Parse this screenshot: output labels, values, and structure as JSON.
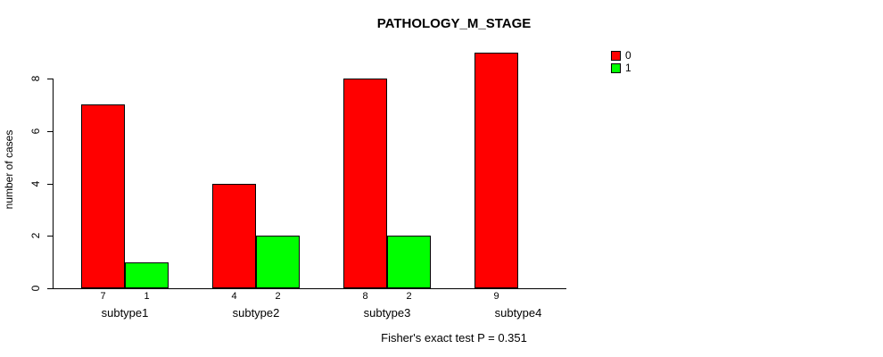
{
  "chart_data": {
    "type": "bar",
    "title": "PATHOLOGY_M_STAGE",
    "categories": [
      "subtype1",
      "subtype2",
      "subtype3",
      "subtype4"
    ],
    "series": [
      {
        "name": "0",
        "color": "#FF0000",
        "values": [
          7,
          4,
          8,
          9
        ]
      },
      {
        "name": "1",
        "color": "#00FF00",
        "values": [
          1,
          2,
          2,
          0
        ]
      }
    ],
    "ylabel": "number of cases",
    "xlabel": "",
    "yticks": [
      0,
      2,
      4,
      6,
      8
    ],
    "ylim": [
      0,
      9
    ],
    "grid": false,
    "legend_position": "top-right",
    "annotation": "Fisher's exact test P = 0.351"
  }
}
